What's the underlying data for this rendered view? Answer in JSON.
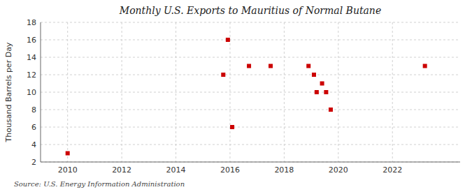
{
  "chart_data": {
    "type": "scatter",
    "title": "Monthly U.S. Exports to Mauritius of Normal Butane",
    "y_label": "Thousand Barrels per Day",
    "source": "Source: U.S. Energy Information Administration",
    "x": [
      2010.0,
      2015.75,
      2015.92,
      2016.08,
      2016.7,
      2017.5,
      2018.9,
      2019.1,
      2019.2,
      2019.4,
      2019.55,
      2019.72,
      2023.2
    ],
    "values": [
      3,
      12,
      16,
      6,
      13,
      13,
      13,
      12,
      10,
      11,
      10,
      8,
      13
    ],
    "color": "#cc0000",
    "marker": "square",
    "xlim": [
      2009.0,
      2024.5
    ],
    "ylim": [
      2,
      18
    ],
    "xticks": [
      2010,
      2012,
      2014,
      2016,
      2018,
      2020,
      2022
    ],
    "yticks": [
      2,
      4,
      6,
      8,
      10,
      12,
      14,
      16,
      18
    ],
    "grid": true
  }
}
